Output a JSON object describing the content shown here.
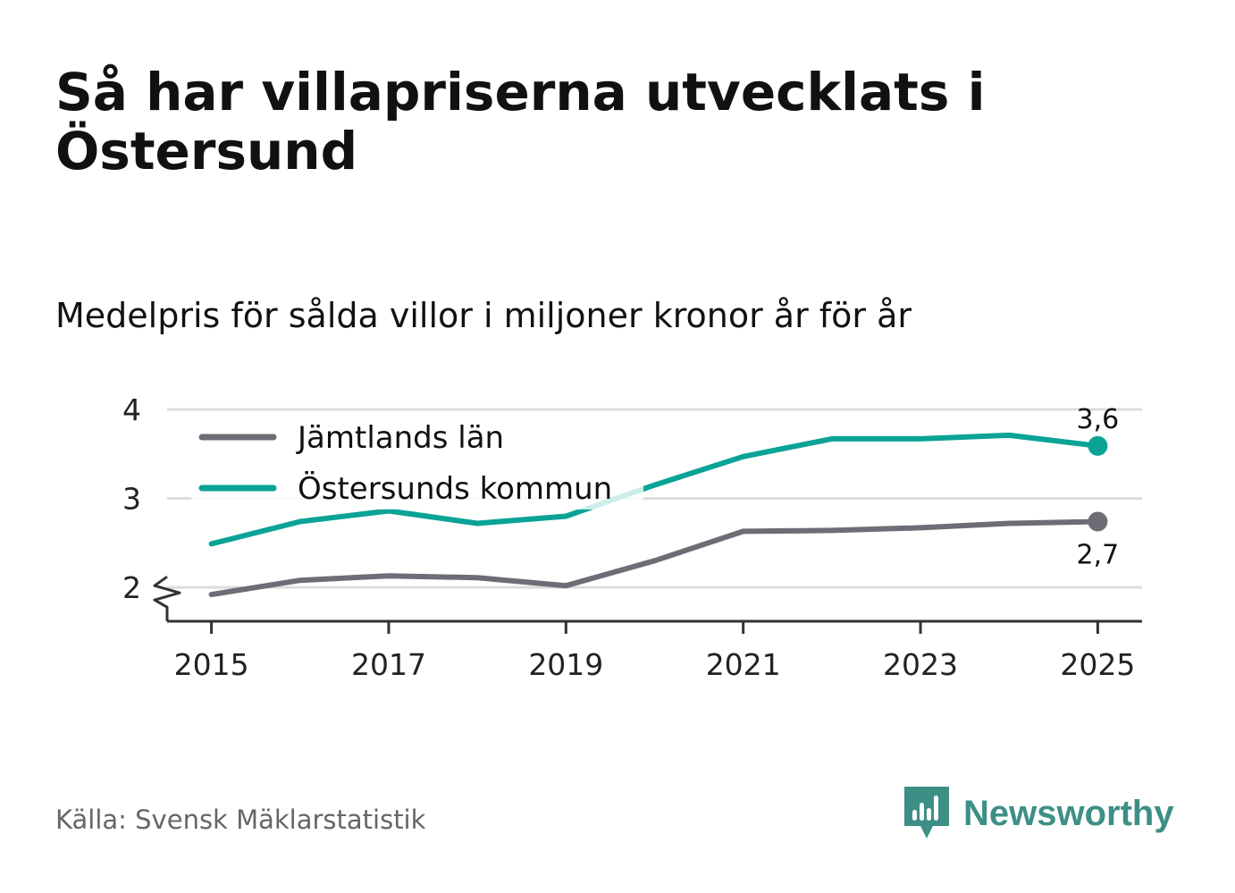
{
  "title": "Så har villapriserna utvecklats i Östersund",
  "subtitle": "Medelpris för sålda villor i miljoner kronor år för år",
  "source": "Källa: Svensk Mäklarstatistik",
  "brand": {
    "name": "Newsworthy",
    "color": "#3d8f86"
  },
  "chart_data": {
    "type": "line",
    "title": "Medelpris för sålda villor i miljoner kronor år för år",
    "xlabel": "",
    "ylabel": "",
    "x": [
      2015,
      2016,
      2017,
      2018,
      2019,
      2020,
      2021,
      2022,
      2023,
      2024,
      2025
    ],
    "xlim": [
      2014.5,
      2025.5
    ],
    "ylim": [
      1.62,
      4
    ],
    "y_broken_axis": true,
    "x_ticks": [
      2015,
      2017,
      2019,
      2021,
      2023,
      2025
    ],
    "x_tick_labels": [
      "2015",
      "2017",
      "2019",
      "2021",
      "2023",
      "2025"
    ],
    "y_ticks": [
      2,
      3,
      4
    ],
    "y_tick_labels": [
      "2",
      "3",
      "4"
    ],
    "grid": true,
    "legend_position": "top-left",
    "series": [
      {
        "name": "Jämtlands län",
        "color": "#6e6d76",
        "values": [
          1.92,
          2.08,
          2.13,
          2.11,
          2.02,
          2.3,
          2.63,
          2.64,
          2.67,
          2.72,
          2.74
        ],
        "end_label": "2,7",
        "end_label_position": "below"
      },
      {
        "name": "Östersunds kommun",
        "color": "#0aa396",
        "values": [
          2.49,
          2.74,
          2.86,
          2.72,
          2.8,
          3.15,
          3.47,
          3.67,
          3.67,
          3.71,
          3.59
        ],
        "end_label": "3,6",
        "end_label_position": "above"
      }
    ]
  }
}
